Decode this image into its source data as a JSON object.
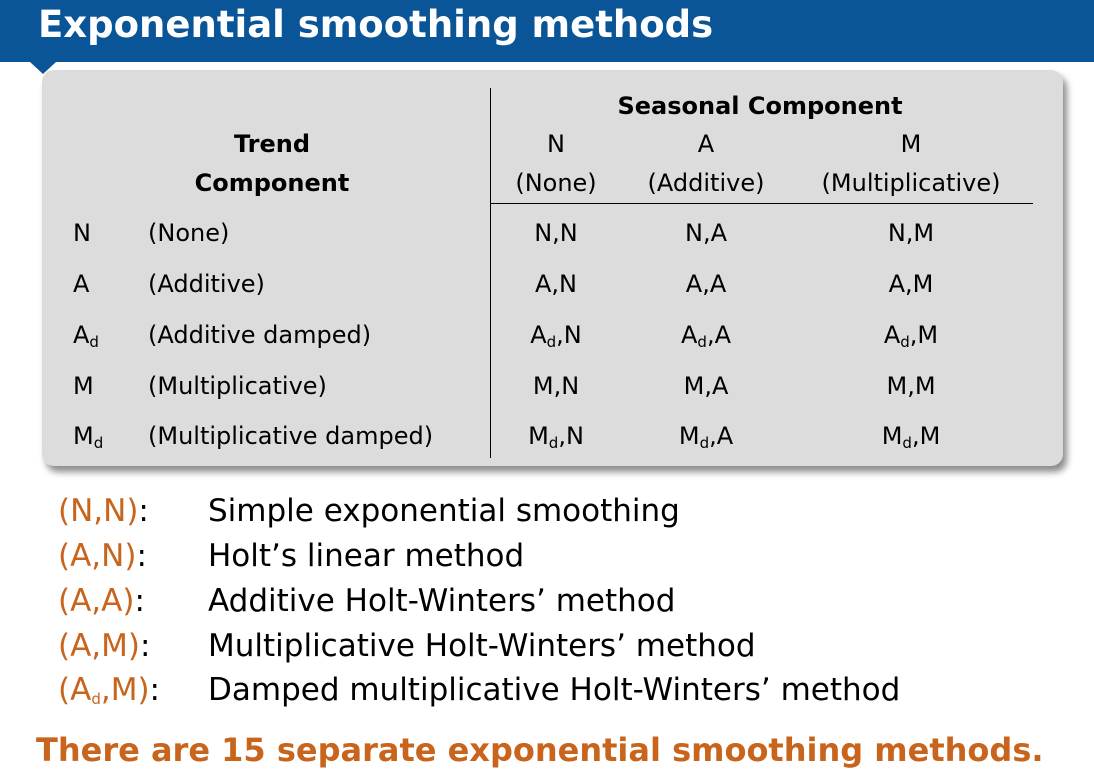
{
  "title": "Exponential smoothing methods",
  "table": {
    "seasonal_header": "Seasonal Component",
    "trend_header_line1": "Trend",
    "trend_header_line2": "Component",
    "seasonal_columns": [
      {
        "code": "N",
        "label": "(None)"
      },
      {
        "code": "A",
        "label": "(Additive)"
      },
      {
        "code": "M",
        "label": "(Multiplicative)"
      }
    ],
    "rows": [
      {
        "code": "N",
        "code_sub": "",
        "label": "(None)",
        "cells": [
          {
            "a": "N",
            "sub": "",
            "b": ",N"
          },
          {
            "a": "N",
            "sub": "",
            "b": ",A"
          },
          {
            "a": "N",
            "sub": "",
            "b": ",M"
          }
        ]
      },
      {
        "code": "A",
        "code_sub": "",
        "label": "(Additive)",
        "cells": [
          {
            "a": "A",
            "sub": "",
            "b": ",N"
          },
          {
            "a": "A",
            "sub": "",
            "b": ",A"
          },
          {
            "a": "A",
            "sub": "",
            "b": ",M"
          }
        ]
      },
      {
        "code": "A",
        "code_sub": "d",
        "label": "(Additive damped)",
        "cells": [
          {
            "a": "A",
            "sub": "d",
            "b": ",N"
          },
          {
            "a": "A",
            "sub": "d",
            "b": ",A"
          },
          {
            "a": "A",
            "sub": "d",
            "b": ",M"
          }
        ]
      },
      {
        "code": "M",
        "code_sub": "",
        "label": "(Multiplicative)",
        "cells": [
          {
            "a": "M",
            "sub": "",
            "b": ",N"
          },
          {
            "a": "M",
            "sub": "",
            "b": ",A"
          },
          {
            "a": "M",
            "sub": "",
            "b": ",M"
          }
        ]
      },
      {
        "code": "M",
        "code_sub": "d",
        "label": "(Multiplicative damped)",
        "cells": [
          {
            "a": "M",
            "sub": "d",
            "b": ",N"
          },
          {
            "a": "M",
            "sub": "d",
            "b": ",A"
          },
          {
            "a": "M",
            "sub": "d",
            "b": ",M"
          }
        ]
      }
    ]
  },
  "legend": [
    {
      "key_a": "(N,N)",
      "key_sub": "",
      "key_b": "",
      "desc": "Simple exponential smoothing"
    },
    {
      "key_a": "(A,N)",
      "key_sub": "",
      "key_b": "",
      "desc": "Holt’s linear method"
    },
    {
      "key_a": "(A,A)",
      "key_sub": "",
      "key_b": "",
      "desc": "Additive Holt-Winters’ method"
    },
    {
      "key_a": "(A,M)",
      "key_sub": "",
      "key_b": "",
      "desc": "Multiplicative Holt-Winters’ method"
    },
    {
      "key_a": "(A",
      "key_sub": "d",
      "key_b": ",M)",
      "desc": "Damped multiplicative Holt-Winters’ method"
    }
  ],
  "legend_colon": ":",
  "footer": "There are 15 separate exponential smoothing methods.",
  "colors": {
    "title_bar": "#0a5597",
    "panel": "#dcdcdc",
    "accent": "#c8641c"
  }
}
